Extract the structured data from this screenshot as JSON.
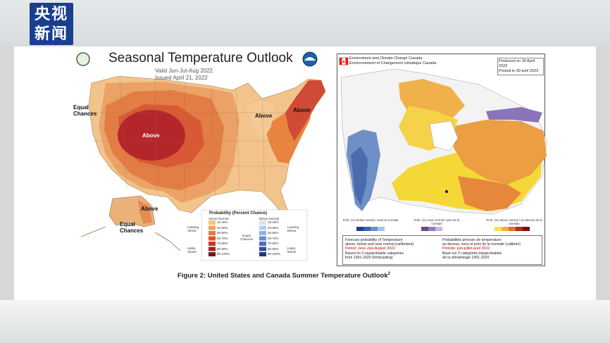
{
  "broadcaster_logo": {
    "line1": "央视",
    "line2": "新闻"
  },
  "us_map": {
    "title": "Seasonal Temperature Outlook",
    "valid": "Valid    Jun-Jul-Aug 2022",
    "issued": "Issued    April 21, 2022",
    "labels": {
      "equal_chances_west": "Equal Chances",
      "above_center": "Above",
      "above_east": "Above",
      "above_northeast": "Above",
      "above_alaska": "Above",
      "equal_chances_alaska": "Equal Chances"
    },
    "legend": {
      "title": "Probability (Percent Chance)",
      "above_header": "Above Normal",
      "below_header": "Below Normal",
      "above_ranges": [
        "33-40%",
        "40-50%",
        "50-60%",
        "60-70%",
        "70-80%",
        "80-90%",
        "90-100%"
      ],
      "below_ranges": [
        "33-40%",
        "40-50%",
        "50-60%",
        "60-70%",
        "70-80%",
        "80-90%",
        "90-100%"
      ],
      "equal_label": "Equal Chances",
      "leaning_above": "Leaning Above",
      "likely_above": "Likely Above",
      "leaning_below": "Leaning Below",
      "likely_below": "Likely Below",
      "above_colors": [
        "#f5c57a",
        "#f0a45a",
        "#e67a3a",
        "#d8542b",
        "#c33a25",
        "#a8221f",
        "#7a1515"
      ],
      "below_colors": [
        "#d6e4f2",
        "#b4cde8",
        "#8fb2dc",
        "#6a8fcc",
        "#4b6fb8",
        "#344f9a",
        "#22357a"
      ]
    }
  },
  "canada_map": {
    "agency_en": "Environment and Climate Change Canada",
    "agency_fr": "Environnement et Changement climatique Canada",
    "produced_en": "Produced on 30 April 2022",
    "produced_fr": "Produit le 30 avril 2022",
    "scale_labels": [
      "Prob. (%) below normal / sous la normale",
      "Prob. (%) near normal / près de la normale",
      "Prob. (%) above normal / au-dessus de la normale"
    ],
    "box_en": [
      "Forecast probability of Temperature",
      "above, below and near normal (calibrated)",
      "Period: June-July-August 2022",
      "Based on 3 equiprobable categories",
      "from 1991-2020 (hindcasting)"
    ],
    "box_fr": [
      "Probabilités prévues de température",
      "au-dessus, sous et près de la normale (calibrée)",
      "Période: juin-juillet-août 2022",
      "Basé sur 3 catégories équiprobables",
      "de la climatologie 1991-2020"
    ]
  },
  "caption": "Figure 2: United States and Canada Summer Temperature Outlook",
  "caption_sup": "2"
}
